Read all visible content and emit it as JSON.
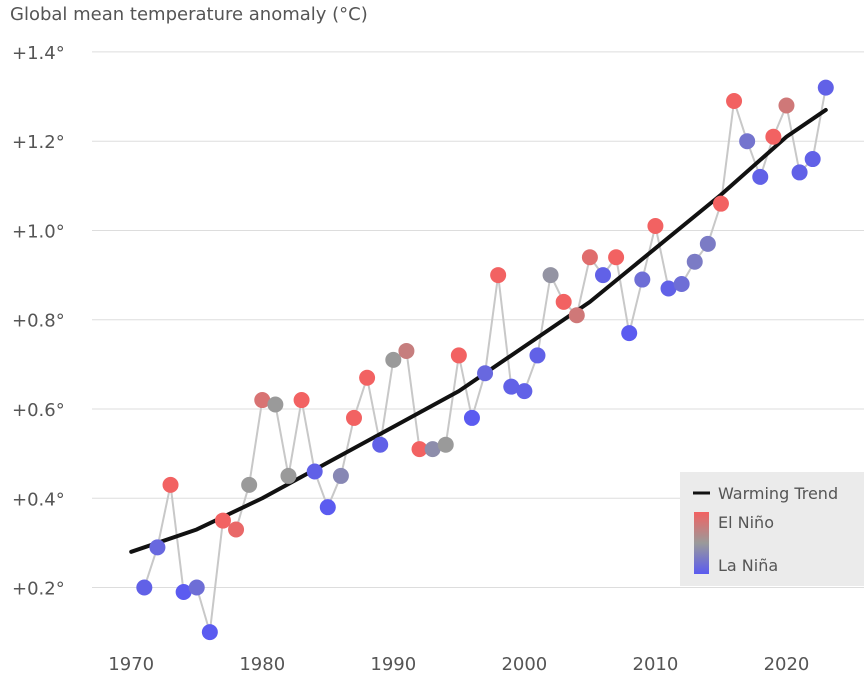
{
  "chart_data": {
    "type": "scatter",
    "title": "",
    "ylabel": "Global mean temperature anomaly (°C)",
    "xlabel": "",
    "xlim": [
      1968,
      2025
    ],
    "ylim": [
      0.06,
      1.42
    ],
    "x_ticks": [
      1970,
      1980,
      1990,
      2000,
      2010,
      2020
    ],
    "y_ticks": [
      0.2,
      0.4,
      0.6,
      0.8,
      1.0,
      1.2,
      1.4
    ],
    "y_tick_labels": [
      "+0.2°",
      "+0.4°",
      "+0.6°",
      "+0.8°",
      "+1.0°",
      "+1.2°",
      "+1.4°"
    ],
    "grid": "horizontal",
    "legend_position": "bottom-right",
    "legend": {
      "trend_label": "Warming Trend",
      "el_nino_label": "El Niño",
      "la_nina_label": "La Niña"
    },
    "colors": {
      "el_nino": "#f26262",
      "neutral": "#9a9a9a",
      "la_nina": "#5b5bf0",
      "line": "#c8c8c8",
      "trend": "#111111",
      "grid": "#dddddd"
    },
    "series": [
      {
        "points": [
          {
            "x": 1971,
            "y": 0.2,
            "enso": -0.9
          },
          {
            "x": 1972,
            "y": 0.29,
            "enso": -0.8
          },
          {
            "x": 1973,
            "y": 0.43,
            "enso": 1.0
          },
          {
            "x": 1974,
            "y": 0.19,
            "enso": -1.0
          },
          {
            "x": 1975,
            "y": 0.2,
            "enso": -0.7
          },
          {
            "x": 1976,
            "y": 0.1,
            "enso": -1.0
          },
          {
            "x": 1977,
            "y": 0.35,
            "enso": 1.0
          },
          {
            "x": 1978,
            "y": 0.33,
            "enso": 0.9
          },
          {
            "x": 1979,
            "y": 0.43,
            "enso": 0.0
          },
          {
            "x": 1980,
            "y": 0.62,
            "enso": 0.7
          },
          {
            "x": 1981,
            "y": 0.61,
            "enso": 0.0
          },
          {
            "x": 1982,
            "y": 0.45,
            "enso": 0.0
          },
          {
            "x": 1983,
            "y": 0.62,
            "enso": 1.0
          },
          {
            "x": 1984,
            "y": 0.46,
            "enso": -0.9
          },
          {
            "x": 1985,
            "y": 0.38,
            "enso": -1.0
          },
          {
            "x": 1986,
            "y": 0.45,
            "enso": -0.3
          },
          {
            "x": 1987,
            "y": 0.58,
            "enso": 1.0
          },
          {
            "x": 1988,
            "y": 0.67,
            "enso": 1.0
          },
          {
            "x": 1989,
            "y": 0.52,
            "enso": -0.9
          },
          {
            "x": 1990,
            "y": 0.71,
            "enso": 0.0
          },
          {
            "x": 1991,
            "y": 0.73,
            "enso": 0.5
          },
          {
            "x": 1992,
            "y": 0.51,
            "enso": 1.0
          },
          {
            "x": 1993,
            "y": 0.51,
            "enso": -0.2
          },
          {
            "x": 1994,
            "y": 0.52,
            "enso": 0.0
          },
          {
            "x": 1995,
            "y": 0.72,
            "enso": 1.0
          },
          {
            "x": 1996,
            "y": 0.58,
            "enso": -1.0
          },
          {
            "x": 1997,
            "y": 0.68,
            "enso": -0.8
          },
          {
            "x": 1998,
            "y": 0.9,
            "enso": 1.0
          },
          {
            "x": 1999,
            "y": 0.65,
            "enso": -0.9
          },
          {
            "x": 2000,
            "y": 0.64,
            "enso": -0.9
          },
          {
            "x": 2001,
            "y": 0.72,
            "enso": -0.9
          },
          {
            "x": 2002,
            "y": 0.9,
            "enso": -0.1
          },
          {
            "x": 2003,
            "y": 0.84,
            "enso": 1.0
          },
          {
            "x": 2004,
            "y": 0.81,
            "enso": 0.6
          },
          {
            "x": 2005,
            "y": 0.94,
            "enso": 0.8
          },
          {
            "x": 2006,
            "y": 0.9,
            "enso": -0.9
          },
          {
            "x": 2007,
            "y": 0.94,
            "enso": 1.0
          },
          {
            "x": 2008,
            "y": 0.77,
            "enso": -1.0
          },
          {
            "x": 2009,
            "y": 0.89,
            "enso": -0.7
          },
          {
            "x": 2010,
            "y": 1.01,
            "enso": 1.0
          },
          {
            "x": 2011,
            "y": 0.87,
            "enso": -0.9
          },
          {
            "x": 2012,
            "y": 0.88,
            "enso": -0.7
          },
          {
            "x": 2013,
            "y": 0.93,
            "enso": -0.5
          },
          {
            "x": 2014,
            "y": 0.97,
            "enso": -0.5
          },
          {
            "x": 2015,
            "y": 1.06,
            "enso": 1.0
          },
          {
            "x": 2016,
            "y": 1.29,
            "enso": 1.0
          },
          {
            "x": 2017,
            "y": 1.2,
            "enso": -0.6
          },
          {
            "x": 2018,
            "y": 1.12,
            "enso": -0.9
          },
          {
            "x": 2019,
            "y": 1.21,
            "enso": 1.0
          },
          {
            "x": 2020,
            "y": 1.28,
            "enso": 0.6
          },
          {
            "x": 2021,
            "y": 1.13,
            "enso": -0.9
          },
          {
            "x": 2022,
            "y": 1.16,
            "enso": -0.9
          },
          {
            "x": 2023,
            "y": 1.32,
            "enso": -0.9
          }
        ]
      }
    ],
    "trend": {
      "label": "Warming Trend",
      "x": [
        1970,
        1975,
        1980,
        1985,
        1990,
        1995,
        2000,
        2005,
        2010,
        2015,
        2020,
        2023
      ],
      "y": [
        0.28,
        0.33,
        0.4,
        0.48,
        0.56,
        0.64,
        0.74,
        0.84,
        0.96,
        1.08,
        1.21,
        1.27
      ]
    }
  }
}
